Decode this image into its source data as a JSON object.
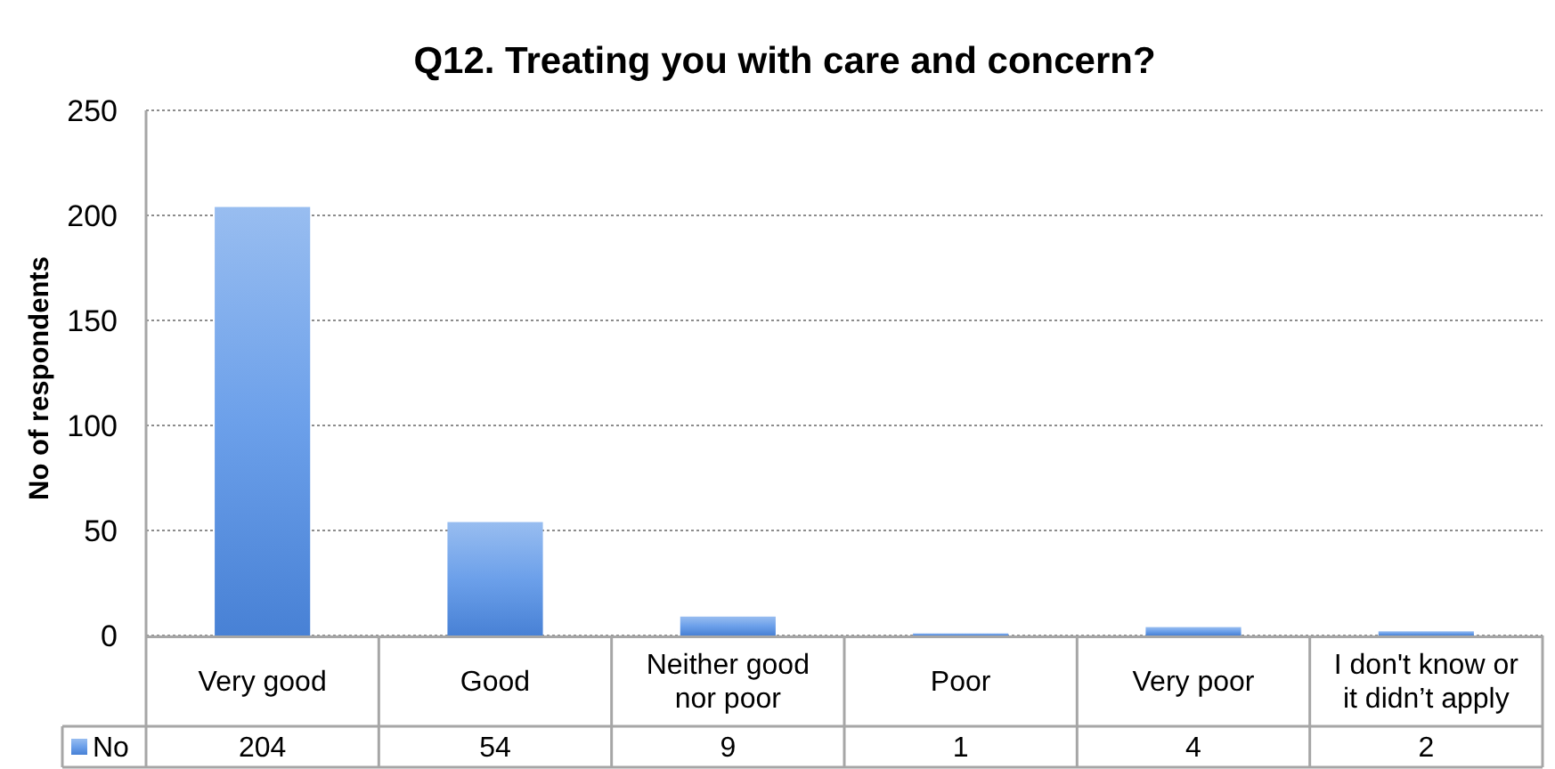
{
  "chart_data": {
    "type": "bar",
    "title": "Q12. Treating you with care and concern?",
    "ylabel": "No of respondents",
    "categories": [
      "Very good",
      "Good",
      "Neither good nor poor",
      "Poor",
      "Very poor",
      "I don't know or it didn’t apply"
    ],
    "series": [
      {
        "name": "No",
        "color": "#6ca0ea",
        "values": [
          204,
          54,
          9,
          1,
          4,
          2
        ]
      }
    ],
    "ylim": [
      0,
      250
    ],
    "yticks": [
      0,
      50,
      100,
      150,
      200,
      250
    ],
    "grid": "y",
    "legend": "bottom",
    "data_labels": true
  }
}
